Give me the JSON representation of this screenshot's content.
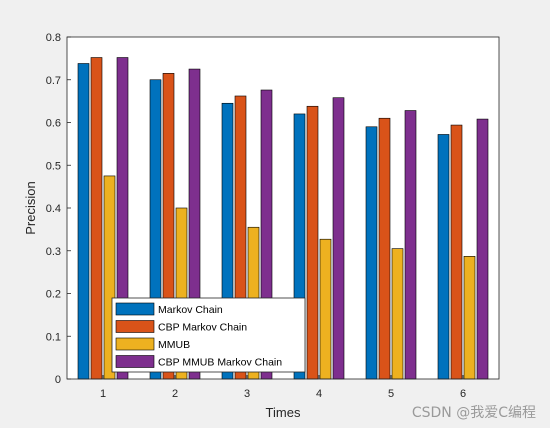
{
  "chart_data": {
    "type": "bar",
    "title": "",
    "xlabel": "Times",
    "ylabel": "Precision",
    "categories": [
      "1",
      "2",
      "3",
      "4",
      "5",
      "6"
    ],
    "ylim": [
      0,
      0.8
    ],
    "yticks": [
      "0",
      "0.1",
      "0.2",
      "0.3",
      "0.4",
      "0.5",
      "0.6",
      "0.7",
      "0.8"
    ],
    "grid": false,
    "legend_position": "bottom-left",
    "series": [
      {
        "name": "Markov Chain",
        "color": "#0072BD",
        "values": [
          0.738,
          0.7,
          0.645,
          0.62,
          0.59,
          0.572
        ]
      },
      {
        "name": "CBP Markov Chain",
        "color": "#D95319",
        "values": [
          0.752,
          0.715,
          0.662,
          0.638,
          0.61,
          0.594
        ]
      },
      {
        "name": "MMUB",
        "color": "#EDB120",
        "values": [
          0.475,
          0.4,
          0.355,
          0.327,
          0.305,
          0.287
        ]
      },
      {
        "name": "CBP MMUB Markov Chain",
        "color": "#7E2F8E",
        "values": [
          0.752,
          0.725,
          0.676,
          0.658,
          0.628,
          0.608
        ]
      }
    ]
  },
  "watermark": "CSDN @我爱C编程"
}
